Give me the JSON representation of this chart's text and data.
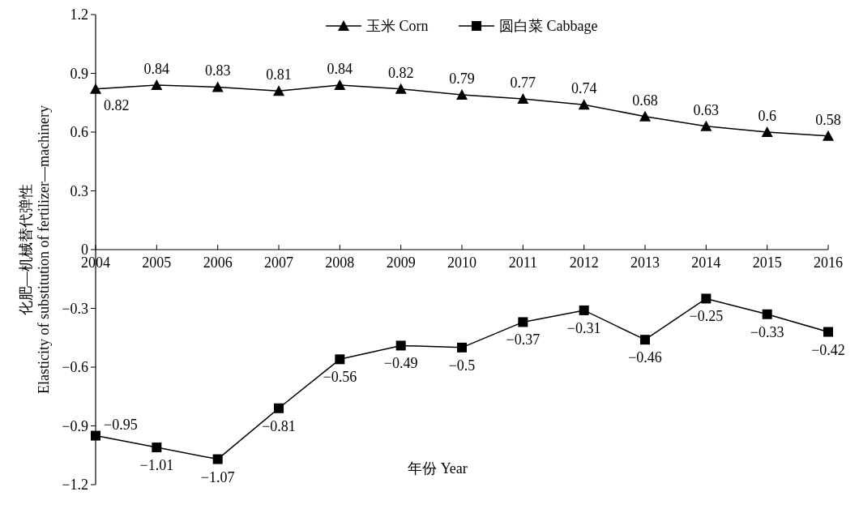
{
  "chart_data": {
    "type": "line",
    "xlabel": "年份 Year",
    "ylabel": "化肥—机械替代弹性\nElasticity of substitution of fertilizer—machinery",
    "x": [
      2004,
      2005,
      2006,
      2007,
      2008,
      2009,
      2010,
      2011,
      2012,
      2013,
      2014,
      2015,
      2016
    ],
    "xlim": [
      2004,
      2016
    ],
    "xticks": [
      2004,
      2005,
      2006,
      2007,
      2008,
      2009,
      2010,
      2011,
      2012,
      2013,
      2014,
      2015,
      2016
    ],
    "ylim": [
      -1.2,
      1.2
    ],
    "yticks": [
      {
        "value": -1.2,
        "label": "−1.2"
      },
      {
        "value": -0.9,
        "label": "−0.9"
      },
      {
        "value": -0.6,
        "label": "−0.6"
      },
      {
        "value": -0.3,
        "label": "−0.3"
      },
      0,
      0.3,
      0.6,
      0.9,
      1.2
    ],
    "series": [
      {
        "name": "玉米 Corn",
        "color": "#000000",
        "marker": "triangle",
        "values": [
          0.82,
          0.84,
          0.83,
          0.81,
          0.84,
          0.82,
          0.79,
          0.77,
          0.74,
          0.68,
          0.63,
          0.6,
          0.58
        ],
        "value_labels": [
          "0.82",
          "0.84",
          "0.83",
          "0.81",
          "0.84",
          "0.82",
          "0.79",
          "0.77",
          "0.74",
          "0.68",
          "0.63",
          "0.6",
          "0.58"
        ]
      },
      {
        "name": "圆白菜 Cabbage",
        "color": "#000000",
        "marker": "square",
        "values": [
          -0.95,
          -1.01,
          -1.07,
          -0.81,
          -0.56,
          -0.49,
          -0.5,
          -0.37,
          -0.31,
          -0.46,
          -0.25,
          -0.33,
          -0.42
        ],
        "value_labels": [
          "−0.95",
          "−1.01",
          "−1.07",
          "−0.81",
          "−0.56",
          "−0.49",
          "−0.5",
          "−0.37",
          "−0.31",
          "−0.46",
          "−0.25",
          "−0.33",
          "−0.42"
        ]
      }
    ],
    "legend": "top",
    "grid": false,
    "line_style": "solid"
  }
}
